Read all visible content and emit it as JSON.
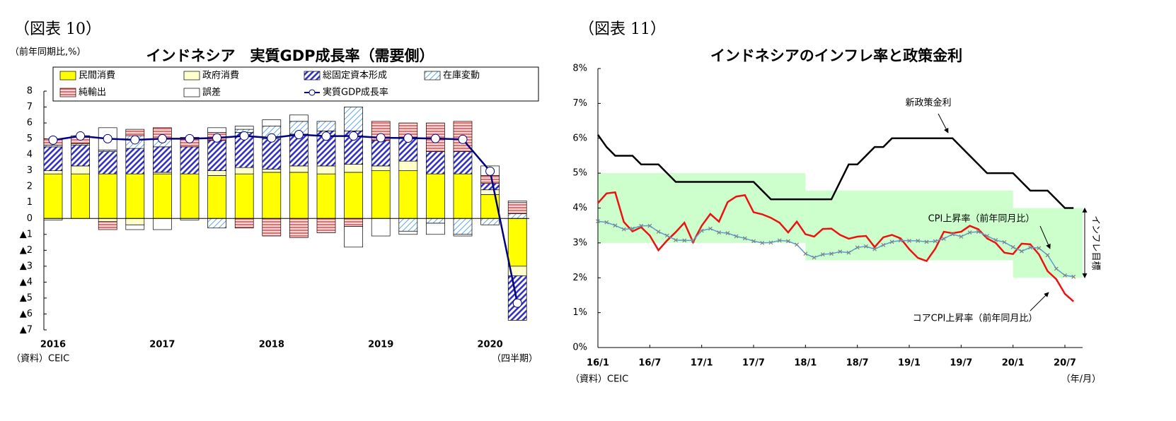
{
  "chart_data": [
    {
      "type": "bar",
      "stacked": true,
      "figure_label": "（図表 10）",
      "title": "インドネシア　実質GDP成長率（需要側）",
      "y_unit": "（前年同期比,%）",
      "source": "（資料）CEIC",
      "x_unit": "（四半期）",
      "categories": [
        "2016",
        null,
        null,
        null,
        "2017",
        null,
        null,
        null,
        "2018",
        null,
        null,
        null,
        "2019",
        null,
        null,
        null,
        "2020",
        null
      ],
      "series": [
        {
          "name": "民間消費",
          "color": "#ffff00",
          "values": [
            2.8,
            2.8,
            2.8,
            2.8,
            2.8,
            2.8,
            2.7,
            2.8,
            2.9,
            2.9,
            2.8,
            2.9,
            3.0,
            3.0,
            2.8,
            2.8,
            1.5,
            -3.0
          ]
        },
        {
          "name": "政府消費",
          "color": "#ffffcc",
          "values": [
            0.2,
            0.5,
            -0.2,
            -0.4,
            0.1,
            0.0,
            0.3,
            0.4,
            0.2,
            0.4,
            0.5,
            0.5,
            0.3,
            0.6,
            0.0,
            0.0,
            0.3,
            -0.6
          ]
        },
        {
          "name": "総固定資本形成",
          "color": "#3333cc",
          "pattern": "diagonal",
          "values": [
            1.5,
            1.3,
            1.4,
            1.6,
            1.6,
            1.7,
            1.9,
            2.2,
            1.9,
            2.0,
            2.2,
            2.1,
            1.6,
            1.5,
            1.4,
            1.4,
            0.4,
            -2.8
          ]
        },
        {
          "name": "在庫変動",
          "color": "#66aadd",
          "pattern": "fine-diagonal",
          "values": [
            0.1,
            0.1,
            0.1,
            0.8,
            0.5,
            0.0,
            -0.6,
            0.2,
            0.8,
            0.8,
            0.6,
            1.5,
            0.0,
            -0.8,
            -0.3,
            -1.0,
            -0.4,
            0.3
          ]
        },
        {
          "name": "純輸出",
          "color": "#ee4444",
          "pattern": "horizontal",
          "values": [
            0.4,
            0.4,
            -0.5,
            0.4,
            0.7,
            0.6,
            0.5,
            -0.6,
            -1.1,
            -1.2,
            -0.9,
            -0.5,
            1.2,
            0.9,
            1.8,
            1.9,
            0.5,
            0.7
          ]
        },
        {
          "name": "誤差",
          "color": "#ffffff",
          "values": [
            -0.1,
            0.1,
            1.4,
            -0.3,
            -0.7,
            -0.1,
            0.3,
            0.2,
            0.4,
            0.4,
            0.0,
            -1.3,
            -1.1,
            -0.2,
            -0.7,
            -0.1,
            0.6,
            0.1
          ]
        },
        {
          "name": "実質GDP成長率",
          "type": "line",
          "color": "#000080",
          "marker": "circle",
          "values": [
            4.92,
            5.18,
            5.01,
            4.94,
            5.01,
            5.01,
            5.06,
            5.19,
            5.06,
            5.27,
            5.17,
            5.18,
            5.07,
            5.05,
            5.02,
            4.97,
            2.97,
            -5.32
          ]
        }
      ],
      "ylim": [
        -7,
        8
      ],
      "yticks": [
        8,
        7,
        6,
        5,
        4,
        3,
        2,
        1,
        0,
        {
          "value": -1,
          "label": "▲1"
        },
        {
          "value": -2,
          "label": "▲2"
        },
        {
          "value": -3,
          "label": "▲3"
        },
        {
          "value": -4,
          "label": "▲4"
        },
        {
          "value": -5,
          "label": "▲5"
        },
        {
          "value": -6,
          "label": "▲6"
        },
        {
          "value": -7,
          "label": "▲7"
        }
      ],
      "legend": "top"
    },
    {
      "type": "line",
      "figure_label": "（図表 11）",
      "title": "インドネシアのインフレ率と政策金利",
      "source": "（資料）CEIC",
      "x_unit": "（年/月）",
      "target_label": "インフレ目標",
      "target_color": "#ccffcc",
      "target_bands": [
        {
          "start": "16/1",
          "low": 3,
          "high": 5
        },
        {
          "start": "18/1",
          "low": 2.5,
          "high": 4.5
        },
        {
          "start": "20/1",
          "low": 2,
          "high": 4
        }
      ],
      "categories": [
        "16/1",
        null,
        null,
        null,
        null,
        null,
        "16/7",
        null,
        null,
        null,
        null,
        null,
        "17/1",
        null,
        null,
        null,
        null,
        null,
        "17/7",
        null,
        null,
        null,
        null,
        null,
        "18/1",
        null,
        null,
        null,
        null,
        null,
        "18/7",
        null,
        null,
        null,
        null,
        null,
        "19/1",
        null,
        null,
        null,
        null,
        null,
        "19/7",
        null,
        null,
        null,
        null,
        null,
        "20/1",
        null,
        null,
        null,
        null,
        null,
        "20/7",
        null
      ],
      "series": [
        {
          "name": "新政策金利",
          "color": "#000000",
          "values": [
            6.1,
            5.75,
            5.5,
            5.5,
            5.5,
            5.25,
            5.25,
            5.25,
            5.0,
            4.75,
            4.75,
            4.75,
            4.75,
            4.75,
            4.75,
            4.75,
            4.75,
            4.75,
            4.75,
            4.5,
            4.25,
            4.25,
            4.25,
            4.25,
            4.25,
            4.25,
            4.25,
            4.25,
            4.75,
            5.25,
            5.25,
            5.5,
            5.75,
            5.75,
            6.0,
            6.0,
            6.0,
            6.0,
            6.0,
            6.0,
            6.0,
            6.0,
            5.75,
            5.5,
            5.25,
            5.0,
            5.0,
            5.0,
            5.0,
            4.75,
            4.5,
            4.5,
            4.5,
            4.25,
            4.0,
            4.0
          ]
        },
        {
          "name": "CPI上昇率（前年同月比）",
          "color": "#ee1111",
          "values": [
            4.14,
            4.42,
            4.45,
            3.6,
            3.33,
            3.45,
            3.21,
            2.79,
            3.07,
            3.31,
            3.58,
            3.02,
            3.49,
            3.83,
            3.61,
            4.17,
            4.33,
            4.37,
            3.88,
            3.82,
            3.72,
            3.58,
            3.3,
            3.61,
            3.25,
            3.18,
            3.4,
            3.41,
            3.23,
            3.12,
            3.18,
            3.2,
            2.88,
            3.16,
            3.23,
            3.13,
            2.82,
            2.57,
            2.48,
            2.83,
            3.32,
            3.28,
            3.32,
            3.49,
            3.39,
            3.13,
            3.0,
            2.72,
            2.68,
            2.98,
            2.96,
            2.67,
            2.19,
            1.96,
            1.54,
            1.32
          ]
        },
        {
          "name": "コアCPI上昇率（前年同月比）",
          "color": "#5b9bd5",
          "marker": "x",
          "marker_color": "#808080",
          "values": [
            3.62,
            3.59,
            3.5,
            3.39,
            3.41,
            3.49,
            3.49,
            3.32,
            3.21,
            3.08,
            3.07,
            3.07,
            3.35,
            3.41,
            3.3,
            3.28,
            3.19,
            3.13,
            3.05,
            3.0,
            3.01,
            3.07,
            3.05,
            2.95,
            2.69,
            2.58,
            2.67,
            2.69,
            2.75,
            2.72,
            2.87,
            2.9,
            2.82,
            2.94,
            3.03,
            3.07,
            3.06,
            3.06,
            3.03,
            3.05,
            3.12,
            3.25,
            3.18,
            3.3,
            3.32,
            3.2,
            3.08,
            3.02,
            2.88,
            2.76,
            2.87,
            2.85,
            2.65,
            2.26,
            2.07,
            2.03
          ]
        }
      ],
      "ylim": [
        0,
        8
      ],
      "yticks": [
        {
          "value": 0,
          "label": "0%"
        },
        {
          "value": 1,
          "label": "1%"
        },
        {
          "value": 2,
          "label": "2%"
        },
        {
          "value": 3,
          "label": "3%"
        },
        {
          "value": 4,
          "label": "4%"
        },
        {
          "value": 5,
          "label": "5%"
        },
        {
          "value": 6,
          "label": "6%"
        },
        {
          "value": 7,
          "label": "7%"
        },
        {
          "value": 8,
          "label": "8%"
        }
      ]
    }
  ]
}
